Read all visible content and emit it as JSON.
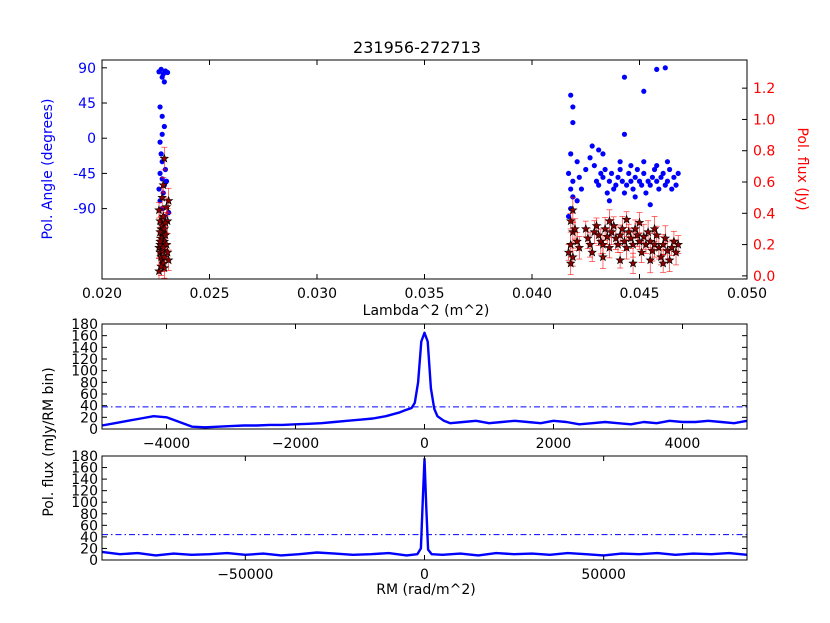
{
  "chart_data": [
    {
      "type": "scatter",
      "title": "231956-272713",
      "xlabel": "Lambda^2 (m^2)",
      "ylabel_left": "Pol. Angle (degrees)",
      "ylabel_right": "Pol. flux (Jy)",
      "xlim": [
        0.02,
        0.05
      ],
      "x_ticks": [
        0.02,
        0.025,
        0.03,
        0.035,
        0.04,
        0.045,
        0.05
      ],
      "x_tick_labels": [
        "0.020",
        "0.025",
        "0.030",
        "0.035",
        "0.040",
        "0.045",
        "0.050"
      ],
      "ylim_left": [
        -180,
        100
      ],
      "y_ticks_left": [
        -90,
        -45,
        0,
        45,
        90
      ],
      "y_tick_labels_left": [
        "-90",
        "-45",
        "0",
        "45",
        "90"
      ],
      "ylim_right": [
        -0.02,
        1.38
      ],
      "y_ticks_right": [
        0,
        0.2,
        0.4,
        0.6,
        0.8,
        1.0,
        1.2
      ],
      "y_tick_labels_right": [
        "0.0",
        "0.2",
        "0.4",
        "0.6",
        "0.8",
        "1.0",
        "1.2"
      ],
      "colors": {
        "angle": "#0000ff",
        "flux_face": "#8b0000",
        "flux_error": "#ff0000",
        "left_axis": "#0000ff",
        "right_axis": "#ff0000"
      },
      "series": [
        {
          "role": "angle",
          "points": [
            [
              0.02265,
              85
            ],
            [
              0.02275,
              88
            ],
            [
              0.02285,
              82
            ],
            [
              0.02295,
              86
            ],
            [
              0.02305,
              84
            ],
            [
              0.0228,
              78
            ],
            [
              0.0229,
              72
            ],
            [
              0.0227,
              40
            ],
            [
              0.0228,
              28
            ],
            [
              0.0229,
              15
            ],
            [
              0.0228,
              5
            ],
            [
              0.0227,
              -5
            ],
            [
              0.02275,
              -20
            ],
            [
              0.0228,
              -30
            ],
            [
              0.0227,
              -45
            ],
            [
              0.0228,
              -52
            ],
            [
              0.0229,
              -60
            ],
            [
              0.02285,
              -70
            ],
            [
              0.0227,
              -80
            ],
            [
              0.0228,
              -90
            ],
            [
              0.0229,
              -100
            ],
            [
              0.0231,
              -95
            ],
            [
              0.02265,
              -65
            ],
            [
              0.02295,
              -40
            ],
            [
              0.023,
              -55
            ],
            [
              0.0418,
              55
            ],
            [
              0.0419,
              40
            ],
            [
              0.0419,
              20
            ],
            [
              0.0418,
              -20
            ],
            [
              0.0417,
              -45
            ],
            [
              0.0419,
              -55
            ],
            [
              0.0418,
              -65
            ],
            [
              0.0419,
              -75
            ],
            [
              0.0418,
              -90
            ],
            [
              0.0417,
              -100
            ],
            [
              0.0421,
              -30
            ],
            [
              0.0422,
              -50
            ],
            [
              0.0421,
              -80
            ],
            [
              0.0423,
              -65
            ],
            [
              0.0425,
              -40
            ],
            [
              0.0427,
              -25
            ],
            [
              0.0428,
              -10
            ],
            [
              0.0429,
              -35
            ],
            [
              0.043,
              -55
            ],
            [
              0.0431,
              -60
            ],
            [
              0.0432,
              -45
            ],
            [
              0.0433,
              -50
            ],
            [
              0.0434,
              -40
            ],
            [
              0.0435,
              -70
            ],
            [
              0.0436,
              -55
            ],
            [
              0.0437,
              -45
            ],
            [
              0.0438,
              -65
            ],
            [
              0.0439,
              -60
            ],
            [
              0.044,
              -50
            ],
            [
              0.0441,
              -40
            ],
            [
              0.0442,
              -55
            ],
            [
              0.0443,
              -70
            ],
            [
              0.0444,
              -60
            ],
            [
              0.0445,
              -45
            ],
            [
              0.0446,
              -55
            ],
            [
              0.0447,
              -65
            ],
            [
              0.0448,
              -50
            ],
            [
              0.0449,
              -40
            ],
            [
              0.045,
              -55
            ],
            [
              0.0451,
              -60
            ],
            [
              0.0452,
              -45
            ],
            [
              0.0453,
              -70
            ],
            [
              0.0454,
              -55
            ],
            [
              0.0455,
              -60
            ],
            [
              0.0456,
              -50
            ],
            [
              0.0457,
              -40
            ],
            [
              0.0458,
              -55
            ],
            [
              0.0459,
              -65
            ],
            [
              0.046,
              -50
            ],
            [
              0.0461,
              -45
            ],
            [
              0.0462,
              -60
            ],
            [
              0.0463,
              -55
            ],
            [
              0.0464,
              -40
            ],
            [
              0.0465,
              -65
            ],
            [
              0.0466,
              -50
            ],
            [
              0.0467,
              -60
            ],
            [
              0.0468,
              -45
            ],
            [
              0.0441,
              -30
            ],
            [
              0.0446,
              -35
            ],
            [
              0.0452,
              -30
            ],
            [
              0.0458,
              -35
            ],
            [
              0.0463,
              -30
            ],
            [
              0.0436,
              -80
            ],
            [
              0.0448,
              -75
            ],
            [
              0.0455,
              -85
            ],
            [
              0.0433,
              -20
            ],
            [
              0.0443,
              5
            ],
            [
              0.0431,
              -15
            ],
            [
              0.0443,
              78
            ],
            [
              0.0452,
              60
            ],
            [
              0.0458,
              88
            ],
            [
              0.0462,
              90
            ]
          ]
        },
        {
          "role": "flux",
          "points": [
            [
              0.02265,
              0.42
            ],
            [
              0.0227,
              0.35
            ],
            [
              0.02275,
              0.3
            ],
            [
              0.0228,
              0.28
            ],
            [
              0.02285,
              0.25
            ],
            [
              0.0229,
              0.22
            ],
            [
              0.02265,
              0.18
            ],
            [
              0.0227,
              0.15
            ],
            [
              0.02275,
              0.12
            ],
            [
              0.0228,
              0.1
            ],
            [
              0.02285,
              0.08
            ],
            [
              0.0229,
              0.05
            ],
            [
              0.02265,
              0.03
            ],
            [
              0.0227,
              0.2
            ],
            [
              0.02275,
              0.24
            ],
            [
              0.0228,
              0.32
            ],
            [
              0.02285,
              0.38
            ],
            [
              0.0229,
              0.3
            ],
            [
              0.02295,
              0.26
            ],
            [
              0.023,
              0.2
            ],
            [
              0.02305,
              0.15
            ],
            [
              0.0231,
              0.1
            ],
            [
              0.02305,
              0.35
            ],
            [
              0.023,
              0.44
            ],
            [
              0.0229,
              0.75
            ],
            [
              0.02285,
              0.58
            ],
            [
              0.0228,
              0.5
            ],
            [
              0.0227,
              0.22
            ],
            [
              0.02275,
              0.06
            ],
            [
              0.0228,
              0.16
            ],
            [
              0.0229,
              0.12
            ],
            [
              0.02295,
              0.34
            ],
            [
              0.0231,
              0.48
            ],
            [
              0.0227,
              0.28
            ],
            [
              0.02285,
              0.18
            ],
            [
              0.0418,
              0.35
            ],
            [
              0.0419,
              0.28
            ],
            [
              0.0418,
              0.2
            ],
            [
              0.0419,
              0.12
            ],
            [
              0.0418,
              0.08
            ],
            [
              0.0417,
              0.15
            ],
            [
              0.042,
              0.3
            ],
            [
              0.0419,
              0.42
            ],
            [
              0.0421,
              0.22
            ],
            [
              0.0422,
              0.18
            ],
            [
              0.0425,
              0.3
            ],
            [
              0.0426,
              0.24
            ],
            [
              0.0427,
              0.2
            ],
            [
              0.0428,
              0.15
            ],
            [
              0.0429,
              0.28
            ],
            [
              0.043,
              0.32
            ],
            [
              0.0431,
              0.26
            ],
            [
              0.0432,
              0.22
            ],
            [
              0.0433,
              0.2
            ],
            [
              0.0434,
              0.3
            ],
            [
              0.0435,
              0.25
            ],
            [
              0.0436,
              0.18
            ],
            [
              0.0437,
              0.28
            ],
            [
              0.0438,
              0.32
            ],
            [
              0.0439,
              0.24
            ],
            [
              0.044,
              0.2
            ],
            [
              0.0441,
              0.26
            ],
            [
              0.0442,
              0.3
            ],
            [
              0.0443,
              0.22
            ],
            [
              0.0444,
              0.18
            ],
            [
              0.0445,
              0.28
            ],
            [
              0.0446,
              0.24
            ],
            [
              0.0447,
              0.2
            ],
            [
              0.0448,
              0.3
            ],
            [
              0.0449,
              0.26
            ],
            [
              0.045,
              0.22
            ],
            [
              0.0451,
              0.15
            ],
            [
              0.0452,
              0.25
            ],
            [
              0.0453,
              0.2
            ],
            [
              0.0454,
              0.28
            ],
            [
              0.0455,
              0.22
            ],
            [
              0.0456,
              0.16
            ],
            [
              0.0457,
              0.2
            ],
            [
              0.0458,
              0.26
            ],
            [
              0.0459,
              0.18
            ],
            [
              0.046,
              0.12
            ],
            [
              0.0461,
              0.2
            ],
            [
              0.0462,
              0.24
            ],
            [
              0.0463,
              0.16
            ],
            [
              0.0464,
              0.1
            ],
            [
              0.0465,
              0.18
            ],
            [
              0.0466,
              0.22
            ],
            [
              0.0467,
              0.15
            ],
            [
              0.0468,
              0.2
            ],
            [
              0.0433,
              0.12
            ],
            [
              0.0441,
              0.1
            ],
            [
              0.0447,
              0.08
            ],
            [
              0.0455,
              0.1
            ],
            [
              0.0461,
              0.08
            ],
            [
              0.0436,
              0.35
            ],
            [
              0.0444,
              0.36
            ],
            [
              0.045,
              0.34
            ],
            [
              0.0457,
              0.3
            ]
          ]
        }
      ]
    },
    {
      "type": "line",
      "xlim": [
        -5000,
        5000
      ],
      "x_ticks": [
        -4000,
        -2000,
        0,
        2000,
        4000
      ],
      "x_tick_labels": [
        "−4000",
        "−2000",
        "0",
        "2000",
        "4000"
      ],
      "ylim": [
        0,
        180
      ],
      "y_ticks": [
        0,
        20,
        40,
        60,
        80,
        100,
        120,
        140,
        160,
        180
      ],
      "y_tick_labels": [
        "0",
        "20",
        "40",
        "60",
        "80",
        "100",
        "120",
        "140",
        "160",
        "180"
      ],
      "threshold": 38,
      "color": "#0000ff",
      "x": [
        -5000,
        -4800,
        -4600,
        -4400,
        -4200,
        -4000,
        -3800,
        -3600,
        -3400,
        -3200,
        -3000,
        -2800,
        -2600,
        -2400,
        -2200,
        -2000,
        -1800,
        -1600,
        -1400,
        -1200,
        -1000,
        -800,
        -600,
        -400,
        -300,
        -200,
        -150,
        -100,
        -50,
        0,
        50,
        100,
        150,
        200,
        300,
        400,
        600,
        800,
        1000,
        1200,
        1400,
        1600,
        1800,
        2000,
        2200,
        2400,
        2600,
        2800,
        3000,
        3200,
        3400,
        3600,
        3800,
        4000,
        4200,
        4400,
        4600,
        4800,
        5000
      ],
      "values": [
        6,
        10,
        14,
        18,
        22,
        20,
        12,
        4,
        3,
        4,
        5,
        6,
        6,
        7,
        7,
        8,
        9,
        10,
        12,
        14,
        16,
        18,
        22,
        28,
        32,
        36,
        45,
        80,
        150,
        165,
        150,
        70,
        35,
        22,
        14,
        10,
        12,
        14,
        10,
        12,
        14,
        12,
        10,
        14,
        12,
        8,
        10,
        12,
        10,
        8,
        12,
        10,
        14,
        12,
        12,
        14,
        12,
        10,
        14
      ]
    },
    {
      "type": "line",
      "xlabel": "RM (rad/m^2)",
      "ylabel": "Pol. flux (mJy/RM bin)",
      "xlim": [
        -90000,
        90000
      ],
      "x_ticks": [
        -50000,
        0,
        50000
      ],
      "x_tick_labels": [
        "−50000",
        "0",
        "50000"
      ],
      "ylim": [
        0,
        180
      ],
      "y_ticks": [
        0,
        20,
        40,
        60,
        80,
        100,
        120,
        140,
        160,
        180
      ],
      "y_tick_labels": [
        "0",
        "20",
        "40",
        "60",
        "80",
        "100",
        "120",
        "140",
        "160",
        "180"
      ],
      "threshold": 44,
      "color": "#0000ff",
      "x": [
        -90000,
        -85000,
        -80000,
        -75000,
        -70000,
        -65000,
        -60000,
        -55000,
        -50000,
        -45000,
        -40000,
        -35000,
        -30000,
        -25000,
        -20000,
        -15000,
        -10000,
        -5000,
        -2000,
        -1000,
        -500,
        0,
        500,
        1000,
        2000,
        5000,
        10000,
        15000,
        20000,
        25000,
        30000,
        35000,
        40000,
        45000,
        50000,
        55000,
        60000,
        65000,
        70000,
        75000,
        80000,
        85000,
        90000
      ],
      "values": [
        14,
        10,
        12,
        8,
        11,
        9,
        10,
        12,
        9,
        11,
        8,
        10,
        13,
        11,
        9,
        10,
        12,
        8,
        10,
        20,
        100,
        175,
        90,
        18,
        10,
        9,
        11,
        8,
        12,
        10,
        11,
        9,
        12,
        10,
        8,
        11,
        10,
        12,
        9,
        11,
        10,
        12,
        9
      ]
    }
  ]
}
